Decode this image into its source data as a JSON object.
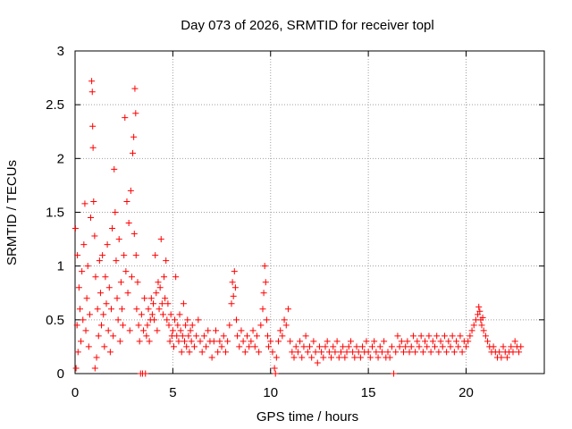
{
  "chart_data": {
    "type": "scatter",
    "title": "Day 073 of 2026, SRMTID for receiver topl",
    "xlabel": "GPS time / hours",
    "ylabel": "SRMTID / TECUs",
    "xlim": [
      0,
      24
    ],
    "ylim": [
      0,
      3
    ],
    "grid": true,
    "marker": "+",
    "series_color": "#ff0000",
    "x_ticks": [
      0,
      5,
      10,
      15,
      20
    ],
    "y_ticks": [
      0,
      0.5,
      1,
      1.5,
      2,
      2.5,
      3
    ],
    "x_tick_labels": [
      "0",
      "5",
      "10",
      "15",
      "20"
    ],
    "y_tick_labels": [
      "0",
      "0.5",
      "1",
      "1.5",
      "2",
      "2.5",
      "3"
    ],
    "series": [
      {
        "name": "SRMTID",
        "points": [
          [
            0.02,
            1.35
          ],
          [
            0.05,
            0.05
          ],
          [
            0.1,
            0.45
          ],
          [
            0.12,
            1.1
          ],
          [
            0.15,
            0.2
          ],
          [
            0.2,
            0.8
          ],
          [
            0.25,
            0.6
          ],
          [
            0.3,
            0.3
          ],
          [
            0.35,
            0.95
          ],
          [
            0.4,
            0.5
          ],
          [
            0.45,
            1.2
          ],
          [
            0.5,
            1.58
          ],
          [
            0.55,
            0.4
          ],
          [
            0.6,
            0.7
          ],
          [
            0.65,
            1.0
          ],
          [
            0.7,
            0.25
          ],
          [
            0.75,
            0.55
          ],
          [
            0.8,
            1.45
          ],
          [
            0.85,
            2.72
          ],
          [
            0.88,
            2.62
          ],
          [
            0.9,
            2.3
          ],
          [
            0.92,
            2.1
          ],
          [
            0.95,
            1.6
          ],
          [
            1.0,
            1.28
          ],
          [
            1.02,
            0.05
          ],
          [
            1.05,
            0.9
          ],
          [
            1.1,
            0.15
          ],
          [
            1.15,
            0.6
          ],
          [
            1.2,
            0.35
          ],
          [
            1.25,
            1.05
          ],
          [
            1.3,
            0.75
          ],
          [
            1.35,
            0.45
          ],
          [
            1.4,
            1.1
          ],
          [
            1.45,
            0.55
          ],
          [
            1.5,
            0.25
          ],
          [
            1.55,
            0.9
          ],
          [
            1.6,
            0.65
          ],
          [
            1.65,
            1.2
          ],
          [
            1.7,
            0.4
          ],
          [
            1.75,
            0.8
          ],
          [
            1.8,
            0.2
          ],
          [
            1.85,
            0.6
          ],
          [
            1.9,
            1.35
          ],
          [
            1.95,
            0.35
          ],
          [
            2.0,
            1.9
          ],
          [
            2.05,
            1.5
          ],
          [
            2.1,
            1.05
          ],
          [
            2.15,
            0.7
          ],
          [
            2.2,
            0.5
          ],
          [
            2.25,
            1.25
          ],
          [
            2.3,
            0.3
          ],
          [
            2.35,
            0.85
          ],
          [
            2.4,
            0.6
          ],
          [
            2.45,
            0.45
          ],
          [
            2.5,
            1.1
          ],
          [
            2.55,
            2.38
          ],
          [
            2.6,
            0.95
          ],
          [
            2.65,
            1.6
          ],
          [
            2.7,
            0.75
          ],
          [
            2.75,
            1.4
          ],
          [
            2.8,
            0.4
          ],
          [
            2.85,
            1.7
          ],
          [
            2.9,
            0.9
          ],
          [
            2.95,
            2.05
          ],
          [
            3.0,
            2.2
          ],
          [
            3.03,
            1.3
          ],
          [
            3.06,
            2.65
          ],
          [
            3.1,
            2.42
          ],
          [
            3.12,
            1.1
          ],
          [
            3.15,
            0.6
          ],
          [
            3.2,
            0.85
          ],
          [
            3.25,
            0.45
          ],
          [
            3.3,
            0.3
          ],
          [
            3.35,
            0.0
          ],
          [
            3.4,
            0.55
          ],
          [
            3.45,
            0.0
          ],
          [
            3.5,
            0.4
          ],
          [
            3.55,
            0.7
          ],
          [
            3.6,
            0.0
          ],
          [
            3.65,
            0.35
          ],
          [
            3.7,
            0.45
          ],
          [
            3.75,
            0.6
          ],
          [
            3.8,
            0.3
          ],
          [
            3.85,
            0.5
          ],
          [
            3.9,
            0.7
          ],
          [
            3.95,
            0.55
          ],
          [
            4.0,
            0.65
          ],
          [
            4.05,
            0.5
          ],
          [
            4.1,
            1.1
          ],
          [
            4.15,
            0.75
          ],
          [
            4.2,
            0.4
          ],
          [
            4.25,
            0.85
          ],
          [
            4.3,
            0.6
          ],
          [
            4.35,
            0.8
          ],
          [
            4.4,
            1.25
          ],
          [
            4.45,
            0.65
          ],
          [
            4.5,
            0.55
          ],
          [
            4.55,
            0.9
          ],
          [
            4.6,
            0.7
          ],
          [
            4.65,
            1.05
          ],
          [
            4.7,
            0.5
          ],
          [
            4.75,
            0.65
          ],
          [
            4.8,
            0.45
          ],
          [
            4.85,
            0.3
          ],
          [
            4.9,
            0.55
          ],
          [
            4.95,
            0.35
          ],
          [
            5.0,
            0.4
          ],
          [
            5.05,
            0.25
          ],
          [
            5.1,
            0.5
          ],
          [
            5.15,
            0.9
          ],
          [
            5.2,
            0.35
          ],
          [
            5.25,
            0.45
          ],
          [
            5.3,
            0.3
          ],
          [
            5.35,
            0.55
          ],
          [
            5.4,
            0.4
          ],
          [
            5.45,
            0.2
          ],
          [
            5.5,
            0.35
          ],
          [
            5.55,
            0.65
          ],
          [
            5.6,
            0.3
          ],
          [
            5.65,
            0.45
          ],
          [
            5.7,
            0.25
          ],
          [
            5.75,
            0.5
          ],
          [
            5.8,
            0.35
          ],
          [
            5.85,
            0.2
          ],
          [
            5.9,
            0.4
          ],
          [
            5.95,
            0.3
          ],
          [
            6.0,
            0.45
          ],
          [
            6.1,
            0.25
          ],
          [
            6.2,
            0.35
          ],
          [
            6.3,
            0.5
          ],
          [
            6.4,
            0.3
          ],
          [
            6.5,
            0.2
          ],
          [
            6.6,
            0.35
          ],
          [
            6.7,
            0.25
          ],
          [
            6.8,
            0.4
          ],
          [
            6.9,
            0.3
          ],
          [
            7.0,
            0.15
          ],
          [
            7.1,
            0.3
          ],
          [
            7.2,
            0.4
          ],
          [
            7.3,
            0.2
          ],
          [
            7.4,
            0.3
          ],
          [
            7.5,
            0.25
          ],
          [
            7.6,
            0.35
          ],
          [
            7.7,
            0.2
          ],
          [
            7.8,
            0.3
          ],
          [
            7.9,
            0.45
          ],
          [
            8.0,
            0.65
          ],
          [
            8.05,
            0.85
          ],
          [
            8.1,
            0.72
          ],
          [
            8.15,
            0.95
          ],
          [
            8.2,
            0.8
          ],
          [
            8.25,
            0.5
          ],
          [
            8.3,
            0.35
          ],
          [
            8.4,
            0.25
          ],
          [
            8.5,
            0.4
          ],
          [
            8.6,
            0.3
          ],
          [
            8.7,
            0.2
          ],
          [
            8.8,
            0.35
          ],
          [
            8.9,
            0.25
          ],
          [
            9.0,
            0.3
          ],
          [
            9.1,
            0.4
          ],
          [
            9.2,
            0.25
          ],
          [
            9.3,
            0.35
          ],
          [
            9.4,
            0.2
          ],
          [
            9.5,
            0.45
          ],
          [
            9.6,
            0.6
          ],
          [
            9.65,
            0.75
          ],
          [
            9.7,
            1.0
          ],
          [
            9.75,
            0.85
          ],
          [
            9.8,
            0.5
          ],
          [
            9.85,
            0.35
          ],
          [
            9.9,
            0.25
          ],
          [
            10.0,
            0.3
          ],
          [
            10.1,
            0.2
          ],
          [
            10.2,
            0.05
          ],
          [
            10.25,
            0.0
          ],
          [
            10.3,
            0.15
          ],
          [
            10.4,
            0.3
          ],
          [
            10.5,
            0.4
          ],
          [
            10.6,
            0.35
          ],
          [
            10.7,
            0.5
          ],
          [
            10.8,
            0.45
          ],
          [
            10.9,
            0.6
          ],
          [
            11.0,
            0.3
          ],
          [
            11.1,
            0.2
          ],
          [
            11.2,
            0.15
          ],
          [
            11.3,
            0.25
          ],
          [
            11.4,
            0.2
          ],
          [
            11.5,
            0.3
          ],
          [
            11.6,
            0.15
          ],
          [
            11.7,
            0.25
          ],
          [
            11.8,
            0.35
          ],
          [
            11.9,
            0.2
          ],
          [
            12.0,
            0.25
          ],
          [
            12.1,
            0.15
          ],
          [
            12.2,
            0.3
          ],
          [
            12.3,
            0.2
          ],
          [
            12.4,
            0.1
          ],
          [
            12.5,
            0.25
          ],
          [
            12.6,
            0.2
          ],
          [
            12.7,
            0.15
          ],
          [
            12.8,
            0.25
          ],
          [
            12.9,
            0.3
          ],
          [
            13.0,
            0.2
          ],
          [
            13.1,
            0.15
          ],
          [
            13.2,
            0.25
          ],
          [
            13.3,
            0.2
          ],
          [
            13.4,
            0.3
          ],
          [
            13.5,
            0.15
          ],
          [
            13.6,
            0.2
          ],
          [
            13.7,
            0.25
          ],
          [
            13.8,
            0.15
          ],
          [
            13.9,
            0.2
          ],
          [
            14.0,
            0.25
          ],
          [
            14.1,
            0.3
          ],
          [
            14.2,
            0.2
          ],
          [
            14.3,
            0.15
          ],
          [
            14.4,
            0.25
          ],
          [
            14.5,
            0.2
          ],
          [
            14.6,
            0.15
          ],
          [
            14.7,
            0.25
          ],
          [
            14.8,
            0.2
          ],
          [
            14.9,
            0.3
          ],
          [
            15.0,
            0.2
          ],
          [
            15.1,
            0.15
          ],
          [
            15.2,
            0.25
          ],
          [
            15.3,
            0.3
          ],
          [
            15.4,
            0.2
          ],
          [
            15.5,
            0.15
          ],
          [
            15.6,
            0.25
          ],
          [
            15.7,
            0.2
          ],
          [
            15.8,
            0.3
          ],
          [
            15.9,
            0.15
          ],
          [
            16.0,
            0.2
          ],
          [
            16.1,
            0.15
          ],
          [
            16.2,
            0.25
          ],
          [
            16.3,
            0.0
          ],
          [
            16.4,
            0.2
          ],
          [
            16.5,
            0.35
          ],
          [
            16.6,
            0.25
          ],
          [
            16.7,
            0.3
          ],
          [
            16.8,
            0.2
          ],
          [
            16.9,
            0.25
          ],
          [
            17.0,
            0.3
          ],
          [
            17.1,
            0.2
          ],
          [
            17.2,
            0.25
          ],
          [
            17.3,
            0.35
          ],
          [
            17.4,
            0.2
          ],
          [
            17.5,
            0.3
          ],
          [
            17.6,
            0.25
          ],
          [
            17.7,
            0.35
          ],
          [
            17.8,
            0.2
          ],
          [
            17.9,
            0.3
          ],
          [
            18.0,
            0.25
          ],
          [
            18.1,
            0.35
          ],
          [
            18.2,
            0.2
          ],
          [
            18.3,
            0.3
          ],
          [
            18.4,
            0.25
          ],
          [
            18.5,
            0.35
          ],
          [
            18.6,
            0.2
          ],
          [
            18.7,
            0.3
          ],
          [
            18.8,
            0.25
          ],
          [
            18.9,
            0.35
          ],
          [
            19.0,
            0.2
          ],
          [
            19.1,
            0.3
          ],
          [
            19.2,
            0.25
          ],
          [
            19.3,
            0.35
          ],
          [
            19.4,
            0.2
          ],
          [
            19.5,
            0.3
          ],
          [
            19.6,
            0.25
          ],
          [
            19.7,
            0.35
          ],
          [
            19.8,
            0.2
          ],
          [
            19.9,
            0.3
          ],
          [
            20.0,
            0.25
          ],
          [
            20.1,
            0.3
          ],
          [
            20.2,
            0.35
          ],
          [
            20.3,
            0.4
          ],
          [
            20.4,
            0.45
          ],
          [
            20.5,
            0.5
          ],
          [
            20.6,
            0.55
          ],
          [
            20.65,
            0.62
          ],
          [
            20.7,
            0.58
          ],
          [
            20.75,
            0.5
          ],
          [
            20.8,
            0.45
          ],
          [
            20.85,
            0.52
          ],
          [
            20.9,
            0.4
          ],
          [
            21.0,
            0.35
          ],
          [
            21.1,
            0.3
          ],
          [
            21.2,
            0.25
          ],
          [
            21.3,
            0.2
          ],
          [
            21.4,
            0.25
          ],
          [
            21.5,
            0.2
          ],
          [
            21.6,
            0.15
          ],
          [
            21.7,
            0.2
          ],
          [
            21.8,
            0.15
          ],
          [
            21.9,
            0.25
          ],
          [
            22.0,
            0.2
          ],
          [
            22.1,
            0.15
          ],
          [
            22.2,
            0.2
          ],
          [
            22.3,
            0.25
          ],
          [
            22.4,
            0.2
          ],
          [
            22.5,
            0.3
          ],
          [
            22.6,
            0.25
          ],
          [
            22.7,
            0.2
          ],
          [
            22.8,
            0.25
          ]
        ]
      }
    ]
  }
}
